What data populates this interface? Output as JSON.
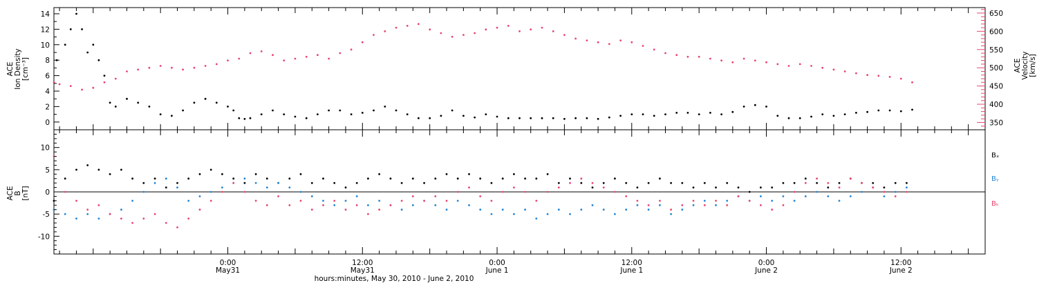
{
  "colors": {
    "density": "#000000",
    "velocity": "#e8456e",
    "bx": "#000000",
    "by": "#1f84d6",
    "bz": "#e8456e",
    "axis": "#000000"
  },
  "chart_data": [
    {
      "type": "scatter",
      "panel": "top",
      "left_axis": {
        "title_lines": [
          "ACE",
          "Ion Density",
          "[cm⁻³]"
        ],
        "ylim": [
          -1,
          14.8
        ],
        "ticks": [
          0,
          2,
          4,
          6,
          8,
          10,
          12,
          14
        ],
        "tick_labels": [
          "0",
          "2",
          "4",
          "6",
          "8",
          "10",
          "12",
          "14"
        ]
      },
      "right_axis": {
        "title_lines": [
          "ACE",
          "Velocity",
          "[km/s]"
        ],
        "ylim": [
          330,
          665
        ],
        "ticks": [
          350,
          400,
          450,
          500,
          550,
          600,
          650
        ],
        "tick_labels": [
          "350",
          "400",
          "450",
          "500",
          "550",
          "600",
          "650"
        ]
      },
      "series": [
        {
          "color_key": "density",
          "x": [
            -30.5,
            -29,
            -28,
            -27,
            -26,
            -25,
            -24,
            -23,
            -22,
            -21,
            -20,
            -18,
            -16,
            -14,
            -12,
            -10,
            -8,
            -6,
            -4,
            -2,
            0,
            1,
            2,
            3,
            4,
            6,
            8,
            10,
            12,
            14,
            16,
            18,
            20,
            22,
            24,
            26,
            28,
            30,
            32,
            34,
            36,
            38,
            40,
            42,
            44,
            46,
            48,
            50,
            52,
            54,
            56,
            58,
            60,
            62,
            64,
            66,
            68,
            70,
            72,
            74,
            76,
            78,
            80,
            82,
            84,
            86,
            88,
            90,
            92,
            94,
            96,
            98,
            100,
            102,
            104,
            106,
            108,
            110,
            112,
            114,
            116,
            118,
            120,
            122
          ],
          "y": [
            8,
            10,
            12,
            14,
            12,
            9,
            10,
            8,
            6,
            2.5,
            2,
            3,
            2.5,
            2,
            1,
            0.8,
            1.5,
            2.5,
            3,
            2.5,
            2,
            1.5,
            0.5,
            0.4,
            0.5,
            1,
            1.5,
            1,
            0.7,
            0.5,
            1,
            1.5,
            1.5,
            1,
            1.2,
            1.5,
            2,
            1.5,
            1,
            0.5,
            0.5,
            0.8,
            1.5,
            0.8,
            0.6,
            1,
            0.7,
            0.5,
            0.5,
            0.5,
            0.5,
            0.5,
            0.4,
            0.5,
            0.5,
            0.4,
            0.6,
            0.8,
            1,
            1,
            0.8,
            1,
            1.2,
            1.2,
            1,
            1.2,
            1,
            1.3,
            2,
            2.2,
            2,
            0.8,
            0.5,
            0.5,
            0.7,
            1,
            0.8,
            1,
            1.2,
            1.3,
            1.5,
            1.5,
            1.4,
            1.6
          ]
        },
        {
          "color_key": "velocity",
          "x": [
            -31,
            -30,
            -28,
            -26,
            -24,
            -22,
            -20,
            -18,
            -16,
            -14,
            -12,
            -10,
            -8,
            -6,
            -4,
            -2,
            0,
            2,
            4,
            6,
            8,
            10,
            12,
            14,
            16,
            18,
            20,
            22,
            24,
            26,
            28,
            30,
            32,
            34,
            36,
            38,
            40,
            42,
            44,
            46,
            48,
            50,
            52,
            54,
            56,
            58,
            60,
            62,
            64,
            66,
            68,
            70,
            72,
            74,
            76,
            78,
            80,
            82,
            84,
            86,
            88,
            90,
            92,
            94,
            96,
            98,
            100,
            102,
            104,
            106,
            108,
            110,
            112,
            114,
            116,
            118,
            120,
            122
          ],
          "y": [
            460,
            455,
            450,
            440,
            445,
            460,
            470,
            490,
            495,
            500,
            505,
            500,
            495,
            500,
            505,
            510,
            520,
            525,
            540,
            545,
            535,
            520,
            525,
            530,
            535,
            525,
            540,
            550,
            570,
            590,
            600,
            610,
            615,
            620,
            605,
            595,
            585,
            590,
            595,
            605,
            610,
            615,
            600,
            605,
            610,
            600,
            590,
            580,
            575,
            570,
            565,
            575,
            570,
            560,
            550,
            540,
            535,
            530,
            530,
            525,
            520,
            515,
            525,
            520,
            515,
            510,
            505,
            510,
            505,
            500,
            495,
            490,
            485,
            480,
            478,
            475,
            470,
            460
          ]
        }
      ]
    },
    {
      "type": "scatter",
      "panel": "bottom",
      "left_axis": {
        "title_lines": [
          "ACE",
          "B",
          "[nT]"
        ],
        "ylim": [
          -14,
          14
        ],
        "ticks": [
          -10,
          -5,
          0,
          5,
          10
        ],
        "tick_labels": [
          "-10",
          "-5",
          "0",
          "5",
          "10"
        ]
      },
      "legend": [
        "Bₓ",
        "Bᵧ",
        "Bₖ"
      ],
      "series": [
        {
          "name": "Bx",
          "color_key": "bx",
          "x": [
            -31,
            -29,
            -27,
            -25,
            -23,
            -21,
            -19,
            -17,
            -15,
            -13,
            -11,
            -9,
            -7,
            -5,
            -3,
            -1,
            1,
            3,
            5,
            7,
            9,
            11,
            13,
            15,
            17,
            19,
            21,
            23,
            25,
            27,
            29,
            31,
            33,
            35,
            37,
            39,
            41,
            43,
            45,
            47,
            49,
            51,
            53,
            55,
            57,
            59,
            61,
            63,
            65,
            67,
            69,
            71,
            73,
            75,
            77,
            79,
            81,
            83,
            85,
            87,
            89,
            91,
            93,
            95,
            97,
            99,
            101,
            103,
            105,
            107,
            109,
            111,
            113,
            115,
            117,
            119,
            121
          ],
          "y": [
            -2,
            3,
            5,
            6,
            5,
            4,
            5,
            3,
            2,
            3,
            1,
            2,
            3,
            4,
            5,
            4,
            3,
            2,
            4,
            3,
            2,
            3,
            4,
            2,
            3,
            2,
            1,
            2,
            3,
            4,
            3,
            2,
            3,
            2,
            3,
            4,
            3,
            4,
            3,
            2,
            3,
            4,
            3,
            3,
            4,
            2,
            3,
            2,
            1,
            2,
            3,
            2,
            1,
            2,
            3,
            2,
            2,
            1,
            2,
            1,
            2,
            1,
            0,
            1,
            1,
            2,
            2,
            3,
            2,
            1,
            2,
            3,
            2,
            2,
            1,
            2,
            2
          ]
        },
        {
          "name": "By",
          "color_key": "by",
          "x": [
            -31,
            -29,
            -27,
            -25,
            -23,
            -21,
            -19,
            -17,
            -15,
            -13,
            -11,
            -9,
            -7,
            -5,
            -3,
            -1,
            1,
            3,
            5,
            7,
            9,
            11,
            13,
            15,
            17,
            19,
            21,
            23,
            25,
            27,
            29,
            31,
            33,
            35,
            37,
            39,
            41,
            43,
            45,
            47,
            49,
            51,
            53,
            55,
            57,
            59,
            61,
            63,
            65,
            67,
            69,
            71,
            73,
            75,
            77,
            79,
            81,
            83,
            85,
            87,
            89,
            91,
            93,
            95,
            97,
            99,
            101,
            103,
            105,
            107,
            109,
            111,
            113,
            115,
            117,
            119,
            121
          ],
          "y": [
            -4,
            -5,
            -6,
            -5,
            -6,
            -5,
            -4,
            -2,
            0,
            2,
            3,
            1,
            -2,
            -1,
            0,
            1,
            2,
            3,
            2,
            1,
            2,
            1,
            0,
            -1,
            -2,
            -3,
            -2,
            -1,
            -3,
            -2,
            -3,
            -4,
            -3,
            -2,
            -3,
            -4,
            -2,
            -3,
            -4,
            -5,
            -4,
            -5,
            -4,
            -6,
            -5,
            -4,
            -5,
            -4,
            -3,
            -4,
            -5,
            -4,
            -3,
            -4,
            -3,
            -5,
            -4,
            -3,
            -2,
            -3,
            -2,
            -1,
            -2,
            -1,
            -2,
            -1,
            -2,
            -1,
            0,
            -1,
            -2,
            -1,
            0,
            1,
            -1,
            0,
            1
          ]
        },
        {
          "name": "Bz",
          "color_key": "bz",
          "x": [
            -31,
            -29,
            -27,
            -25,
            -23,
            -21,
            -19,
            -17,
            -15,
            -13,
            -11,
            -9,
            -7,
            -5,
            -3,
            -1,
            1,
            3,
            5,
            7,
            9,
            11,
            13,
            15,
            17,
            19,
            21,
            23,
            25,
            27,
            29,
            31,
            33,
            35,
            37,
            39,
            41,
            43,
            45,
            47,
            49,
            51,
            53,
            55,
            57,
            59,
            61,
            63,
            65,
            67,
            69,
            71,
            73,
            75,
            77,
            79,
            81,
            83,
            85,
            87,
            89,
            91,
            93,
            95,
            97,
            99,
            101,
            103,
            105,
            107,
            109,
            111,
            113,
            115,
            117,
            119,
            121
          ],
          "y": [
            8,
            0,
            -2,
            -4,
            -3,
            -5,
            -6,
            -7,
            -6,
            -5,
            -7,
            -8,
            -6,
            -4,
            -2,
            0,
            2,
            0,
            -2,
            -3,
            -1,
            -3,
            -2,
            -4,
            -3,
            -2,
            -4,
            -3,
            -5,
            -4,
            -3,
            -2,
            -1,
            -2,
            -1,
            -2,
            0,
            1,
            -1,
            -2,
            0,
            1,
            0,
            -2,
            0,
            1,
            2,
            3,
            2,
            1,
            0,
            -1,
            -2,
            -3,
            -2,
            -4,
            -3,
            -2,
            -3,
            -2,
            -3,
            -1,
            -2,
            -3,
            -4,
            -3,
            0,
            2,
            3,
            2,
            1,
            3,
            2,
            1,
            0,
            -1,
            0
          ]
        }
      ]
    }
  ],
  "x_axis": {
    "xlim": [
      -31,
      135
    ],
    "major_ticks": [
      0,
      24,
      48,
      72,
      96,
      120
    ],
    "tick_labels_line1": [
      "0:00",
      "12:00",
      "0:00",
      "12:00",
      "0:00",
      "12:00"
    ],
    "tick_labels_line2": [
      "May31",
      "May31",
      "June 1",
      "June 1",
      "June 2",
      "June 2"
    ],
    "xlabel": "hours:minutes, May 30, 2010 - June 2, 2010"
  }
}
